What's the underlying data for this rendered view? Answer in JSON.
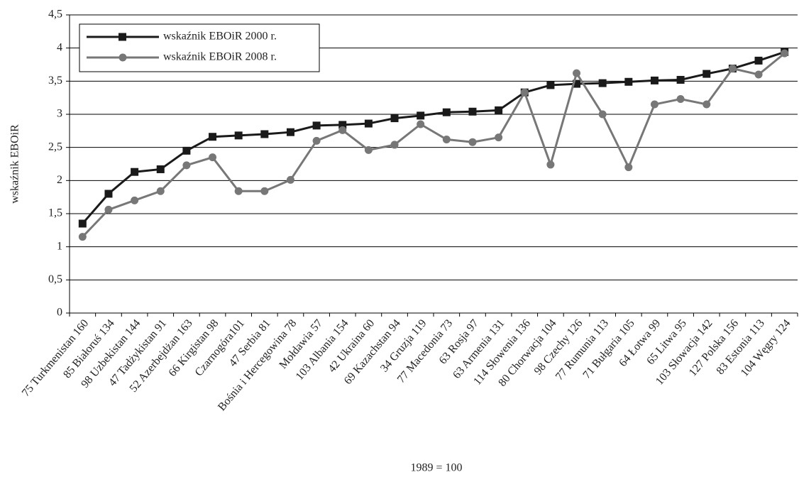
{
  "chart_data": {
    "type": "line",
    "y_label": "wskaźnik EBOiR",
    "x_label": "1989 = 100",
    "categories": [
      "75 Turkmenistan 160",
      "85 Białoruś 134",
      "98 Uzbekistan 144",
      "47 Tadżykistan 91",
      "52 Azerbejdżan 163",
      "66 Kirgistan 98",
      "Czarnogóra101",
      "47 Serbia 81",
      "Bośnia i Hercegowina 78",
      "Mołdawia 57",
      "103 Albania 154",
      "42 Ukraina 60",
      "69 Kazachstan 94",
      "34 Gruzja 119",
      "77 Macedonia 73",
      "63 Rosja 97",
      "63 Armenia 131",
      "114 Słowenia 136",
      "80 Chorwacja 104",
      "98 Czechy 126",
      "77 Rumunia 113",
      "71 Bułgaria 105",
      "64 Łotwa 99",
      "65 Litwa 95",
      "103 Słowacja 142",
      "127 Polska 156",
      "83 Estonia 113",
      "104 Węgry 124"
    ],
    "series": [
      {
        "name": "wskaźnik EBOiR 2000 r.",
        "color": "#1a1a1a",
        "marker": "square",
        "values": [
          1.35,
          1.8,
          2.13,
          2.17,
          2.45,
          2.66,
          2.68,
          2.7,
          2.73,
          2.83,
          2.84,
          2.86,
          2.94,
          2.98,
          3.03,
          3.04,
          3.06,
          3.33,
          3.44,
          3.46,
          3.47,
          3.49,
          3.51,
          3.52,
          3.61,
          3.69,
          3.81,
          3.94
        ]
      },
      {
        "name": "wskaźnik EBOiR 2008 r.",
        "color": "#777777",
        "marker": "circle",
        "values": [
          1.15,
          1.56,
          1.7,
          1.84,
          2.23,
          2.35,
          1.84,
          1.84,
          2.01,
          2.6,
          2.76,
          2.46,
          2.54,
          2.85,
          2.62,
          2.58,
          2.65,
          3.33,
          2.24,
          3.62,
          3.0,
          2.2,
          3.15,
          3.23,
          3.15,
          3.69,
          3.6,
          3.92
        ]
      }
    ],
    "ylim": [
      0,
      4.5
    ],
    "yticks": [
      0,
      {
        "value": 0.5,
        "label": "0,5"
      },
      1,
      {
        "value": 1.5,
        "label": "1,5"
      },
      2,
      {
        "value": 2.5,
        "label": "2,5"
      },
      3,
      {
        "value": 3.5,
        "label": "3,5"
      },
      4,
      {
        "value": 4.5,
        "label": "4,5"
      }
    ],
    "grid": true,
    "legend": "upper-left"
  }
}
